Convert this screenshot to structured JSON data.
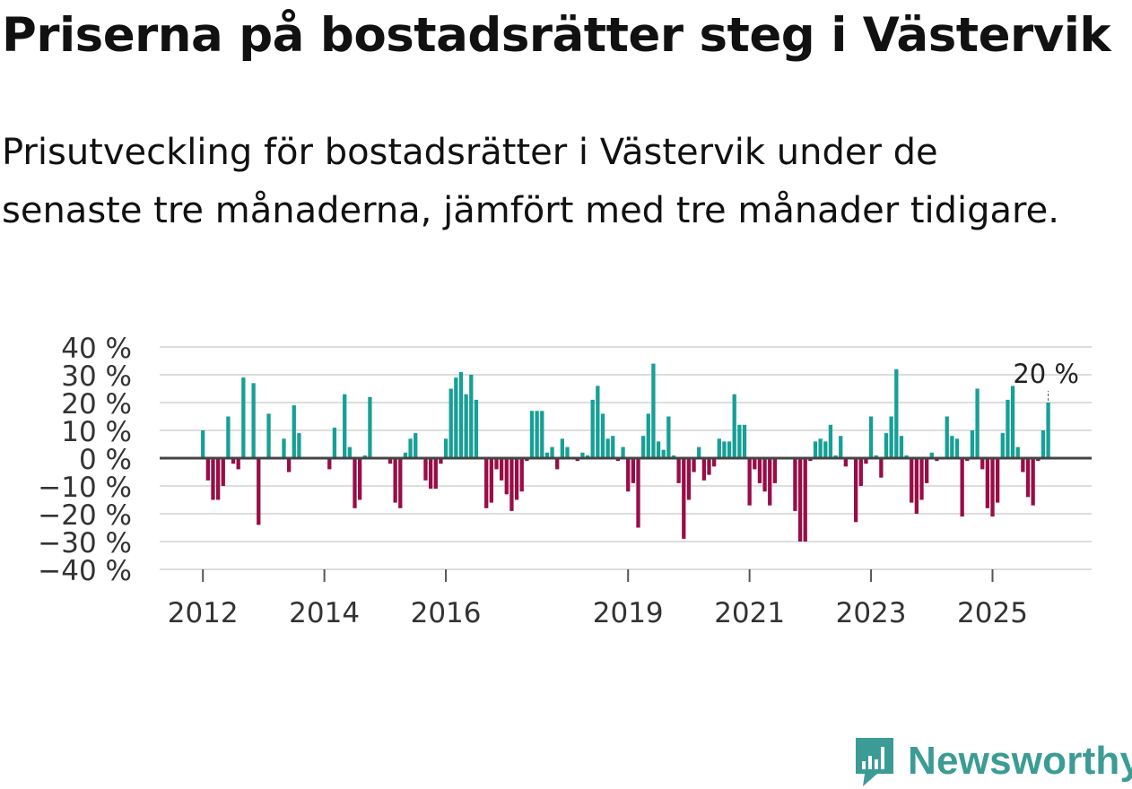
{
  "title": "Priserna på bostadsrätter steg i Västervik",
  "subtitle": "Prisutveckling för bostadsrätter i Västervik under de senaste tre månaderna, jämfört med tre månader tidigare.",
  "brand": {
    "name": "Newsworthy",
    "icon": "newsworthy-logo-icon",
    "color": "#3b9c95"
  },
  "chart_data": {
    "type": "bar",
    "title": "",
    "xlabel": "",
    "ylabel": "",
    "ylim": [
      -40,
      40
    ],
    "yticks": [
      40,
      30,
      20,
      10,
      0,
      -10,
      -20,
      -30,
      -40
    ],
    "ytick_labels": [
      "40 %",
      "30 %",
      "20 %",
      "10 %",
      "0 %",
      "−10 %",
      "−20 %",
      "−30 %",
      "−40 %"
    ],
    "xticks": [
      {
        "label": "2012",
        "index": 0
      },
      {
        "label": "2014",
        "index": 24
      },
      {
        "label": "2016",
        "index": 48
      },
      {
        "label": "2019",
        "index": 84
      },
      {
        "label": "2021",
        "index": 108
      },
      {
        "label": "2023",
        "index": 132
      },
      {
        "label": "2025",
        "index": 156
      }
    ],
    "grid": true,
    "positive_color": "#16a096",
    "negative_color": "#990d47",
    "axis_zero_color": "#444444",
    "annotation": {
      "text": "20 %",
      "index": 167
    },
    "categories_note": "monthly values from Jan 2012 to Dec 2025, null = no data",
    "values": [
      10,
      -8,
      -15,
      -15,
      -10,
      15,
      -2,
      -4,
      29,
      null,
      27,
      -24,
      null,
      16,
      null,
      null,
      7,
      -5,
      19,
      9,
      null,
      null,
      null,
      null,
      null,
      -4,
      11,
      null,
      23,
      4,
      -18,
      -15,
      1,
      22,
      null,
      null,
      null,
      -2,
      -16,
      -18,
      2,
      7,
      9,
      null,
      -8,
      -11,
      -11,
      -2,
      7,
      25,
      29,
      31,
      23,
      30,
      21,
      null,
      -18,
      -16,
      -4,
      -8,
      -13,
      -19,
      -15,
      -12,
      -1,
      17,
      17,
      17,
      2,
      4,
      -4,
      7,
      4,
      null,
      -1,
      2,
      1,
      21,
      26,
      16,
      7,
      8,
      -1,
      4,
      -12,
      -9,
      -25,
      8,
      16,
      34,
      6,
      3,
      15,
      1,
      -9,
      -29,
      -15,
      -5,
      4,
      -8,
      -6,
      -3,
      7,
      6,
      6,
      23,
      12,
      12,
      -17,
      -4,
      -9,
      -12,
      -17,
      -9,
      null,
      null,
      null,
      -19,
      -30,
      -30,
      -1,
      6,
      7,
      6,
      12,
      1,
      8,
      -3,
      null,
      -23,
      -10,
      -2,
      15,
      1,
      -7,
      9,
      15,
      32,
      8,
      1,
      -16,
      -20,
      -15,
      -9,
      2,
      -1,
      null,
      15,
      8,
      7,
      -21,
      -1,
      10,
      25,
      -4,
      -18,
      -21,
      -16,
      9,
      21,
      26,
      4,
      -5,
      -14,
      -17,
      -1,
      10,
      20
    ]
  }
}
